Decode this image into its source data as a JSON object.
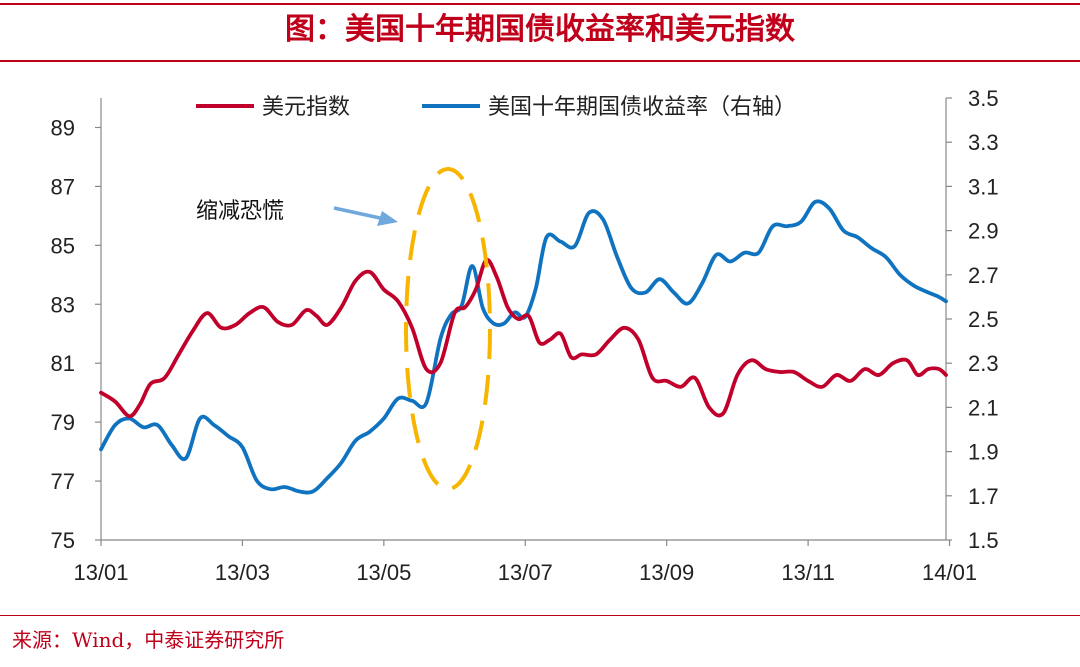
{
  "title": "图：美国十年期国债收益率和美元指数",
  "source": "来源：Wind，中泰证券研究所",
  "colors": {
    "accent": "#c0001a",
    "usd": "#c0002a",
    "yield": "#0f73c0",
    "highlight": "#f7b500",
    "arrow": "#6fa8dc"
  },
  "chart_data": {
    "type": "line",
    "x_tick_labels": [
      "13/01",
      "13/03",
      "13/05",
      "13/07",
      "13/09",
      "13/11",
      "14/01"
    ],
    "x": [
      0,
      2,
      4,
      6,
      8,
      10,
      12
    ],
    "x_range": [
      0,
      11.95
    ],
    "left_axis": {
      "ylim": [
        75,
        90
      ],
      "ticks": [
        75,
        77,
        79,
        81,
        83,
        85,
        87,
        89
      ]
    },
    "right_axis": {
      "ylim": [
        1.5,
        3.5
      ],
      "ticks": [
        "1.5",
        "1.7",
        "1.9",
        "2.1",
        "2.3",
        "2.5",
        "2.7",
        "2.9",
        "3.1",
        "3.3",
        "3.5"
      ]
    },
    "legend": [
      "美元指数",
      "美国十年期国债收益率（右轴）"
    ],
    "annotation": "缩减恐慌",
    "series": [
      {
        "name": "美元指数",
        "axis": "left",
        "x": [
          0,
          0.2,
          0.4,
          0.55,
          0.7,
          0.9,
          1.1,
          1.3,
          1.5,
          1.7,
          1.9,
          2.1,
          2.3,
          2.5,
          2.7,
          2.9,
          3.05,
          3.2,
          3.4,
          3.6,
          3.8,
          4.0,
          4.2,
          4.4,
          4.6,
          4.8,
          5.0,
          5.15,
          5.3,
          5.45,
          5.6,
          5.75,
          5.9,
          6.05,
          6.2,
          6.35,
          6.5,
          6.65,
          6.8,
          7.0,
          7.2,
          7.4,
          7.6,
          7.8,
          8.0,
          8.2,
          8.4,
          8.6,
          8.8,
          9.0,
          9.2,
          9.4,
          9.6,
          9.8,
          10.0,
          10.2,
          10.4,
          10.6,
          10.8,
          11.0,
          11.2,
          11.4,
          11.55,
          11.7,
          11.85,
          11.95
        ],
        "values": [
          80.0,
          79.7,
          79.2,
          79.6,
          80.3,
          80.5,
          81.3,
          82.1,
          82.7,
          82.2,
          82.3,
          82.7,
          82.9,
          82.4,
          82.3,
          82.8,
          82.6,
          82.3,
          82.9,
          83.8,
          84.1,
          83.5,
          83.1,
          82.2,
          80.8,
          81.0,
          82.7,
          82.9,
          83.5,
          84.5,
          83.9,
          82.9,
          82.5,
          82.6,
          81.7,
          81.8,
          82.0,
          81.2,
          81.3,
          81.3,
          81.8,
          82.2,
          81.8,
          80.5,
          80.4,
          80.2,
          80.5,
          79.5,
          79.3,
          80.6,
          81.1,
          80.8,
          80.7,
          80.7,
          80.4,
          80.2,
          80.6,
          80.4,
          80.8,
          80.6,
          81.0,
          81.1,
          80.6,
          80.8,
          80.8,
          80.6
        ]
      },
      {
        "name": "美国十年期国债收益率（右轴）",
        "axis": "right",
        "x": [
          0,
          0.2,
          0.4,
          0.6,
          0.8,
          1.0,
          1.2,
          1.4,
          1.6,
          1.8,
          2.0,
          2.2,
          2.4,
          2.6,
          2.8,
          3.0,
          3.2,
          3.4,
          3.6,
          3.8,
          4.0,
          4.2,
          4.4,
          4.6,
          4.8,
          4.95,
          5.1,
          5.25,
          5.4,
          5.55,
          5.7,
          5.85,
          6.0,
          6.15,
          6.3,
          6.5,
          6.7,
          6.9,
          7.1,
          7.3,
          7.5,
          7.7,
          7.9,
          8.1,
          8.3,
          8.5,
          8.7,
          8.9,
          9.1,
          9.3,
          9.5,
          9.7,
          9.9,
          10.1,
          10.3,
          10.5,
          10.7,
          10.9,
          11.1,
          11.3,
          11.5,
          11.7,
          11.85,
          11.95
        ],
        "values": [
          1.91,
          2.02,
          2.05,
          2.01,
          2.02,
          1.93,
          1.87,
          2.05,
          2.02,
          1.97,
          1.92,
          1.77,
          1.73,
          1.74,
          1.72,
          1.72,
          1.78,
          1.85,
          1.95,
          1.99,
          2.05,
          2.14,
          2.13,
          2.12,
          2.41,
          2.52,
          2.56,
          2.74,
          2.55,
          2.48,
          2.48,
          2.53,
          2.51,
          2.64,
          2.87,
          2.85,
          2.83,
          2.98,
          2.95,
          2.78,
          2.64,
          2.62,
          2.68,
          2.62,
          2.57,
          2.66,
          2.79,
          2.76,
          2.8,
          2.8,
          2.92,
          2.92,
          2.94,
          3.03,
          3.0,
          2.9,
          2.87,
          2.82,
          2.78,
          2.7,
          2.65,
          2.62,
          2.6,
          2.58
        ]
      }
    ]
  }
}
